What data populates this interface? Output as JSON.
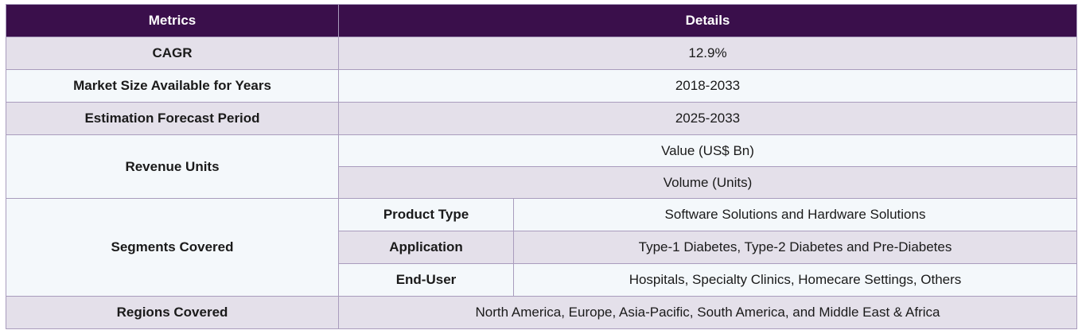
{
  "header": {
    "metrics": "Metrics",
    "details": "Details"
  },
  "rows": {
    "cagr": {
      "label": "CAGR",
      "value": "12.9%"
    },
    "market_size": {
      "label": "Market Size Available for Years",
      "value": "2018-2033"
    },
    "forecast": {
      "label": "Estimation Forecast Period",
      "value": "2025-2033"
    },
    "revenue": {
      "label": "Revenue Units",
      "values": [
        "Value (US$ Bn)",
        "Volume (Units)"
      ]
    },
    "segments": {
      "label": "Segments Covered",
      "items": [
        {
          "name": "Product Type",
          "value": "Software Solutions and Hardware Solutions"
        },
        {
          "name": "Application",
          "value": "Type-1 Diabetes, Type-2 Diabetes and Pre-Diabetes"
        },
        {
          "name": "End-User",
          "value": "Hospitals, Specialty Clinics, Homecare Settings, Others"
        }
      ]
    },
    "regions": {
      "label": "Regions Covered",
      "value": "North America, Europe, Asia-Pacific, South America, and Middle East & Africa"
    }
  },
  "colors": {
    "header_bg": "#3a0f4b",
    "shaded_row": "#e4e0ea",
    "light_row": "#f4f8fb",
    "border": "#a99cbd"
  }
}
